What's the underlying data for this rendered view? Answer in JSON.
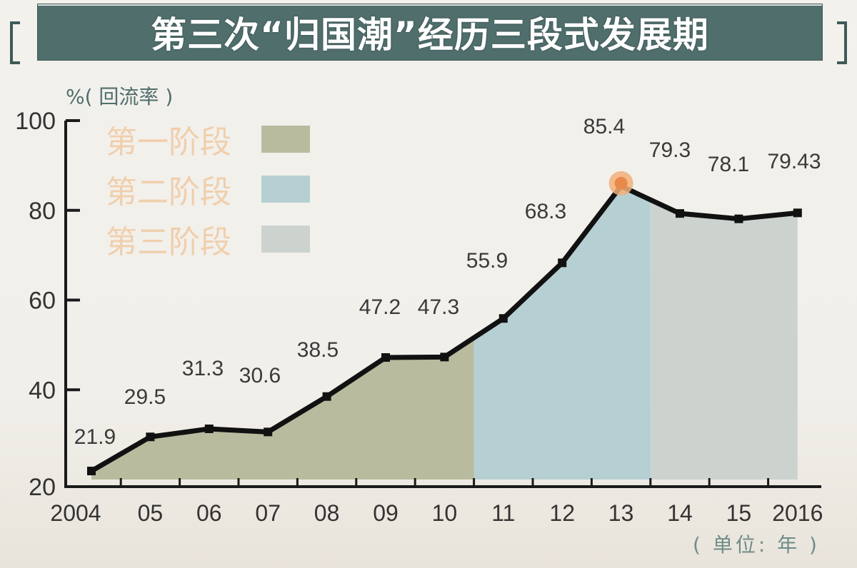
{
  "title": "第三次“归国潮”经历三段式发展期",
  "y_unit_label": "%( 回流率 )",
  "x_unit_label": "( 单位: 年 )",
  "legend": [
    {
      "label": "第一阶段",
      "color": "#b9bb9e"
    },
    {
      "label": "第二阶段",
      "color": "#b6cfd3"
    },
    {
      "label": "第三阶段",
      "color": "#ccd3cf"
    }
  ],
  "colors": {
    "title_bg": "#4f6e6c",
    "line": "#111111",
    "highlight_point": "#e8894a",
    "axis": "#1a1a1a",
    "label_text": "#3a3a3a"
  },
  "chart_data": {
    "type": "area",
    "title": "第三次“归国潮”经历三段式发展期",
    "xlabel": "单位: 年",
    "ylabel": "%(回流率)",
    "x_tick_labels": [
      "2004",
      "05",
      "06",
      "07",
      "08",
      "09",
      "10",
      "11",
      "12",
      "13",
      "14",
      "15",
      "2016"
    ],
    "x": [
      2004,
      2005,
      2006,
      2007,
      2008,
      2009,
      2010,
      2011,
      2012,
      2013,
      2014,
      2015,
      2016
    ],
    "values": [
      21.9,
      29.5,
      31.3,
      30.6,
      38.5,
      47.2,
      47.3,
      55.9,
      68.3,
      85.4,
      79.3,
      78.1,
      79.43
    ],
    "data_labels": [
      "21.9",
      "29.5",
      "31.3",
      "30.6",
      "38.5",
      "47.2",
      "47.3",
      "55.9",
      "68.3",
      "85.4",
      "79.3",
      "78.1",
      "79.43"
    ],
    "y_ticks": [
      20,
      40,
      60,
      80,
      100
    ],
    "ylim": [
      20,
      100
    ],
    "grid": false,
    "legend_position": "top-left",
    "highlight": {
      "x": 2013,
      "value": 85.4
    },
    "stages": [
      {
        "name": "第一阶段",
        "from": 2004,
        "to": 2010.5
      },
      {
        "name": "第二阶段",
        "from": 2010.5,
        "to": 2013.5
      },
      {
        "name": "第三阶段",
        "from": 2013.5,
        "to": 2016
      }
    ]
  }
}
